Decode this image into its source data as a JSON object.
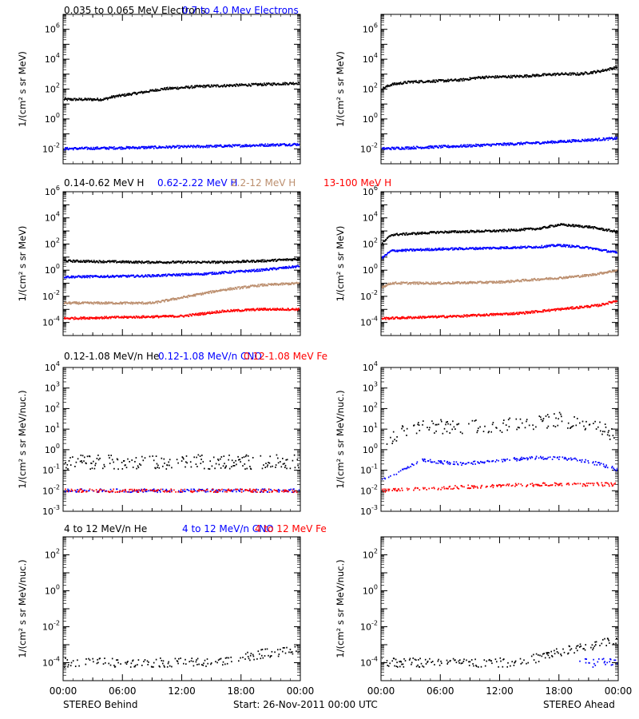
{
  "figure": {
    "start_label": "Start: 26-Nov-2011 00:00 UTC",
    "left_footer": "STEREO Behind",
    "right_footer": "STEREO Ahead",
    "x_ticks": [
      "00:00",
      "06:00",
      "12:00",
      "18:00",
      "00:00"
    ]
  },
  "chart_data": [
    {
      "type": "scatter",
      "spacecraft": "STEREO Behind",
      "row": 1,
      "ylabel": "1/(cm² s sr MeV)",
      "yscale": "log",
      "ylim": [
        0.001,
        10000000
      ],
      "y_ticks": [
        {
          "exp": "-2"
        },
        {
          "exp": "0"
        },
        {
          "exp": "2"
        },
        {
          "exp": "4"
        },
        {
          "exp": "6"
        }
      ],
      "xlim_hours": [
        0,
        24
      ],
      "series": [
        {
          "name": "0.035 to 0.065 MeV Electrons",
          "color": "#000000",
          "points": [
            [
              0,
              20
            ],
            [
              4,
              20
            ],
            [
              5,
              30
            ],
            [
              8,
              60
            ],
            [
              10,
              100
            ],
            [
              14,
              150
            ],
            [
              20,
              200
            ],
            [
              24,
              250
            ]
          ]
        },
        {
          "name": "0.7 to 4.0 Mev Electrons",
          "color": "#0000ff",
          "points": [
            [
              0,
              0.01
            ],
            [
              8,
              0.012
            ],
            [
              16,
              0.015
            ],
            [
              24,
              0.02
            ]
          ]
        }
      ]
    },
    {
      "type": "scatter",
      "spacecraft": "STEREO Ahead",
      "row": 1,
      "ylabel": "1/(cm² s sr MeV)",
      "yscale": "log",
      "ylim": [
        0.001,
        10000000
      ],
      "y_ticks": [
        {
          "exp": "-2"
        },
        {
          "exp": "0"
        },
        {
          "exp": "2"
        },
        {
          "exp": "4"
        },
        {
          "exp": "6"
        }
      ],
      "xlim_hours": [
        0,
        24
      ],
      "series": [
        {
          "name": "",
          "color": "#000000",
          "points": [
            [
              0,
              100
            ],
            [
              1,
              200
            ],
            [
              3,
              300
            ],
            [
              6,
              350
            ],
            [
              8,
              400
            ],
            [
              10,
              600
            ],
            [
              14,
              700
            ],
            [
              18,
              1000
            ],
            [
              20,
              1000
            ],
            [
              22,
              1500
            ],
            [
              24,
              3000
            ]
          ]
        },
        {
          "name": "",
          "color": "#0000ff",
          "points": [
            [
              0,
              0.01
            ],
            [
              8,
              0.015
            ],
            [
              16,
              0.025
            ],
            [
              24,
              0.05
            ]
          ]
        }
      ]
    },
    {
      "type": "scatter",
      "spacecraft": "STEREO Behind",
      "row": 2,
      "ylabel": "1/(cm² s sr MeV)",
      "yscale": "log",
      "ylim": [
        1e-05,
        1000000
      ],
      "y_ticks": [
        {
          "exp": "-4"
        },
        {
          "exp": "-2"
        },
        {
          "exp": "0"
        },
        {
          "exp": "2"
        },
        {
          "exp": "4"
        },
        {
          "exp": "6"
        }
      ],
      "xlim_hours": [
        0,
        24
      ],
      "series": [
        {
          "name": "0.14-0.62 MeV H",
          "color": "#000000",
          "points": [
            [
              0,
              5
            ],
            [
              8,
              4
            ],
            [
              16,
              4
            ],
            [
              20,
              5
            ],
            [
              24,
              7
            ]
          ]
        },
        {
          "name": "0.62-2.22 MeV H",
          "color": "#0000ff",
          "points": [
            [
              0,
              0.3
            ],
            [
              8,
              0.35
            ],
            [
              14,
              0.5
            ],
            [
              20,
              1
            ],
            [
              24,
              2
            ]
          ]
        },
        {
          "name": "2.2-12 MeV H",
          "color": "#bc8f6f",
          "points": [
            [
              0,
              0.003
            ],
            [
              9,
              0.003
            ],
            [
              12,
              0.008
            ],
            [
              16,
              0.03
            ],
            [
              20,
              0.07
            ],
            [
              24,
              0.1
            ]
          ]
        },
        {
          "name": "13-100 MeV H",
          "color": "#ff0000",
          "points": [
            [
              0,
              0.0002
            ],
            [
              12,
              0.0003
            ],
            [
              16,
              0.0007
            ],
            [
              20,
              0.001
            ],
            [
              24,
              0.001
            ]
          ]
        }
      ]
    },
    {
      "type": "scatter",
      "spacecraft": "STEREO Ahead",
      "row": 2,
      "ylabel": "1/(cm² s sr MeV)",
      "yscale": "log",
      "ylim": [
        1e-05,
        1000000
      ],
      "y_ticks": [
        {
          "exp": "-4"
        },
        {
          "exp": "-2"
        },
        {
          "exp": "0"
        },
        {
          "exp": "2"
        },
        {
          "exp": "4"
        },
        {
          "exp": "6"
        }
      ],
      "xlim_hours": [
        0,
        24
      ],
      "series": [
        {
          "name": "",
          "color": "#000000",
          "points": [
            [
              0,
              100
            ],
            [
              1,
              500
            ],
            [
              6,
              800
            ],
            [
              12,
              1000
            ],
            [
              16,
              1500
            ],
            [
              18,
              3000
            ],
            [
              21,
              2000
            ],
            [
              24,
              800
            ]
          ]
        },
        {
          "name": "",
          "color": "#0000ff",
          "points": [
            [
              0,
              8
            ],
            [
              1,
              30
            ],
            [
              6,
              40
            ],
            [
              12,
              50
            ],
            [
              16,
              60
            ],
            [
              18,
              80
            ],
            [
              21,
              50
            ],
            [
              24,
              20
            ]
          ]
        },
        {
          "name": "",
          "color": "#bc8f6f",
          "points": [
            [
              0,
              0.05
            ],
            [
              1,
              0.1
            ],
            [
              6,
              0.1
            ],
            [
              12,
              0.12
            ],
            [
              16,
              0.2
            ],
            [
              18,
              0.25
            ],
            [
              21,
              0.4
            ],
            [
              24,
              1
            ]
          ]
        },
        {
          "name": "",
          "color": "#ff0000",
          "points": [
            [
              0,
              0.0002
            ],
            [
              8,
              0.0003
            ],
            [
              14,
              0.0005
            ],
            [
              18,
              0.001
            ],
            [
              22,
              0.002
            ],
            [
              24,
              0.005
            ]
          ]
        }
      ]
    },
    {
      "type": "scatter",
      "spacecraft": "STEREO Behind",
      "row": 3,
      "ylabel": "1/(cm² s sr MeV/nuc.)",
      "yscale": "log",
      "ylim": [
        0.001,
        10000
      ],
      "y_ticks": [
        {
          "exp": "-3"
        },
        {
          "exp": "-2"
        },
        {
          "exp": "-1"
        },
        {
          "exp": "0"
        },
        {
          "exp": "1"
        },
        {
          "exp": "2"
        },
        {
          "exp": "3"
        },
        {
          "exp": "4"
        }
      ],
      "xlim_hours": [
        0,
        24
      ],
      "series": [
        {
          "name": "0.12-1.08 MeV/n He",
          "color": "#000000",
          "points": [
            [
              0,
              0.25
            ],
            [
              8,
              0.25
            ],
            [
              16,
              0.25
            ],
            [
              24,
              0.25
            ]
          ]
        },
        {
          "name": "0.12-1.08 MeV/n CNO",
          "color": "#0000ff",
          "points": [
            [
              0,
              0.01
            ],
            [
              12,
              0.01
            ],
            [
              24,
              0.01
            ]
          ]
        },
        {
          "name": "0.12-1.08 MeV Fe",
          "color": "#ff0000",
          "points": [
            [
              0,
              0.01
            ],
            [
              12,
              0.01
            ],
            [
              24,
              0.01
            ]
          ]
        }
      ]
    },
    {
      "type": "scatter",
      "spacecraft": "STEREO Ahead",
      "row": 3,
      "ylabel": "1/(cm² s sr MeV/nuc.)",
      "yscale": "log",
      "ylim": [
        0.001,
        10000
      ],
      "y_ticks": [
        {
          "exp": "-3"
        },
        {
          "exp": "-2"
        },
        {
          "exp": "-1"
        },
        {
          "exp": "0"
        },
        {
          "exp": "1"
        },
        {
          "exp": "2"
        },
        {
          "exp": "3"
        },
        {
          "exp": "4"
        }
      ],
      "xlim_hours": [
        0,
        24
      ],
      "series": [
        {
          "name": "",
          "color": "#000000",
          "points": [
            [
              0,
              1.5
            ],
            [
              2,
              8
            ],
            [
              4,
              15
            ],
            [
              8,
              12
            ],
            [
              12,
              15
            ],
            [
              16,
              20
            ],
            [
              18,
              30
            ],
            [
              20,
              15
            ],
            [
              22,
              10
            ],
            [
              24,
              5
            ]
          ]
        },
        {
          "name": "",
          "color": "#0000ff",
          "points": [
            [
              0,
              0.03
            ],
            [
              2,
              0.1
            ],
            [
              4,
              0.3
            ],
            [
              8,
              0.2
            ],
            [
              12,
              0.3
            ],
            [
              16,
              0.4
            ],
            [
              18,
              0.4
            ],
            [
              20,
              0.3
            ],
            [
              22,
              0.2
            ],
            [
              24,
              0.1
            ]
          ]
        },
        {
          "name": "",
          "color": "#ff0000",
          "points": [
            [
              0,
              0.01
            ],
            [
              8,
              0.015
            ],
            [
              16,
              0.02
            ],
            [
              24,
              0.02
            ]
          ]
        }
      ]
    },
    {
      "type": "scatter",
      "spacecraft": "STEREO Behind",
      "row": 4,
      "ylabel": "1/(cm² s sr MeV/nuc.)",
      "yscale": "log",
      "ylim": [
        1e-05,
        1000
      ],
      "y_ticks": [
        {
          "exp": "-4"
        },
        {
          "exp": "-2"
        },
        {
          "exp": "0"
        },
        {
          "exp": "2"
        }
      ],
      "xlim_hours": [
        0,
        24
      ],
      "series": [
        {
          "name": "4 to 12 MeV/n He",
          "color": "#000000",
          "points": [
            [
              0,
              0.0001
            ],
            [
              16,
              0.0001
            ],
            [
              18,
              0.0002
            ],
            [
              20,
              0.0003
            ],
            [
              22,
              0.0004
            ],
            [
              24,
              0.0006
            ]
          ]
        },
        {
          "name": "4 to 12 MeV/n CNO",
          "color": "#0000ff",
          "points": []
        },
        {
          "name": "4 to 12 MeV Fe",
          "color": "#ff0000",
          "points": []
        }
      ]
    },
    {
      "type": "scatter",
      "spacecraft": "STEREO Ahead",
      "row": 4,
      "ylabel": "1/(cm² s sr MeV/nuc.)",
      "yscale": "log",
      "ylim": [
        1e-05,
        1000
      ],
      "y_ticks": [
        {
          "exp": "-4"
        },
        {
          "exp": "-2"
        },
        {
          "exp": "0"
        },
        {
          "exp": "2"
        }
      ],
      "xlim_hours": [
        0,
        24
      ],
      "series": [
        {
          "name": "",
          "color": "#000000",
          "points": [
            [
              0,
              0.0001
            ],
            [
              14,
              0.0001
            ],
            [
              16,
              0.0002
            ],
            [
              18,
              0.0004
            ],
            [
              20,
              0.0006
            ],
            [
              22,
              0.001
            ],
            [
              24,
              0.002
            ]
          ]
        },
        {
          "name": "",
          "color": "#0000ff",
          "points": [
            [
              20,
              0.0001
            ],
            [
              24,
              0.0001
            ]
          ]
        },
        {
          "name": "",
          "color": "#ff0000",
          "points": []
        }
      ]
    }
  ]
}
